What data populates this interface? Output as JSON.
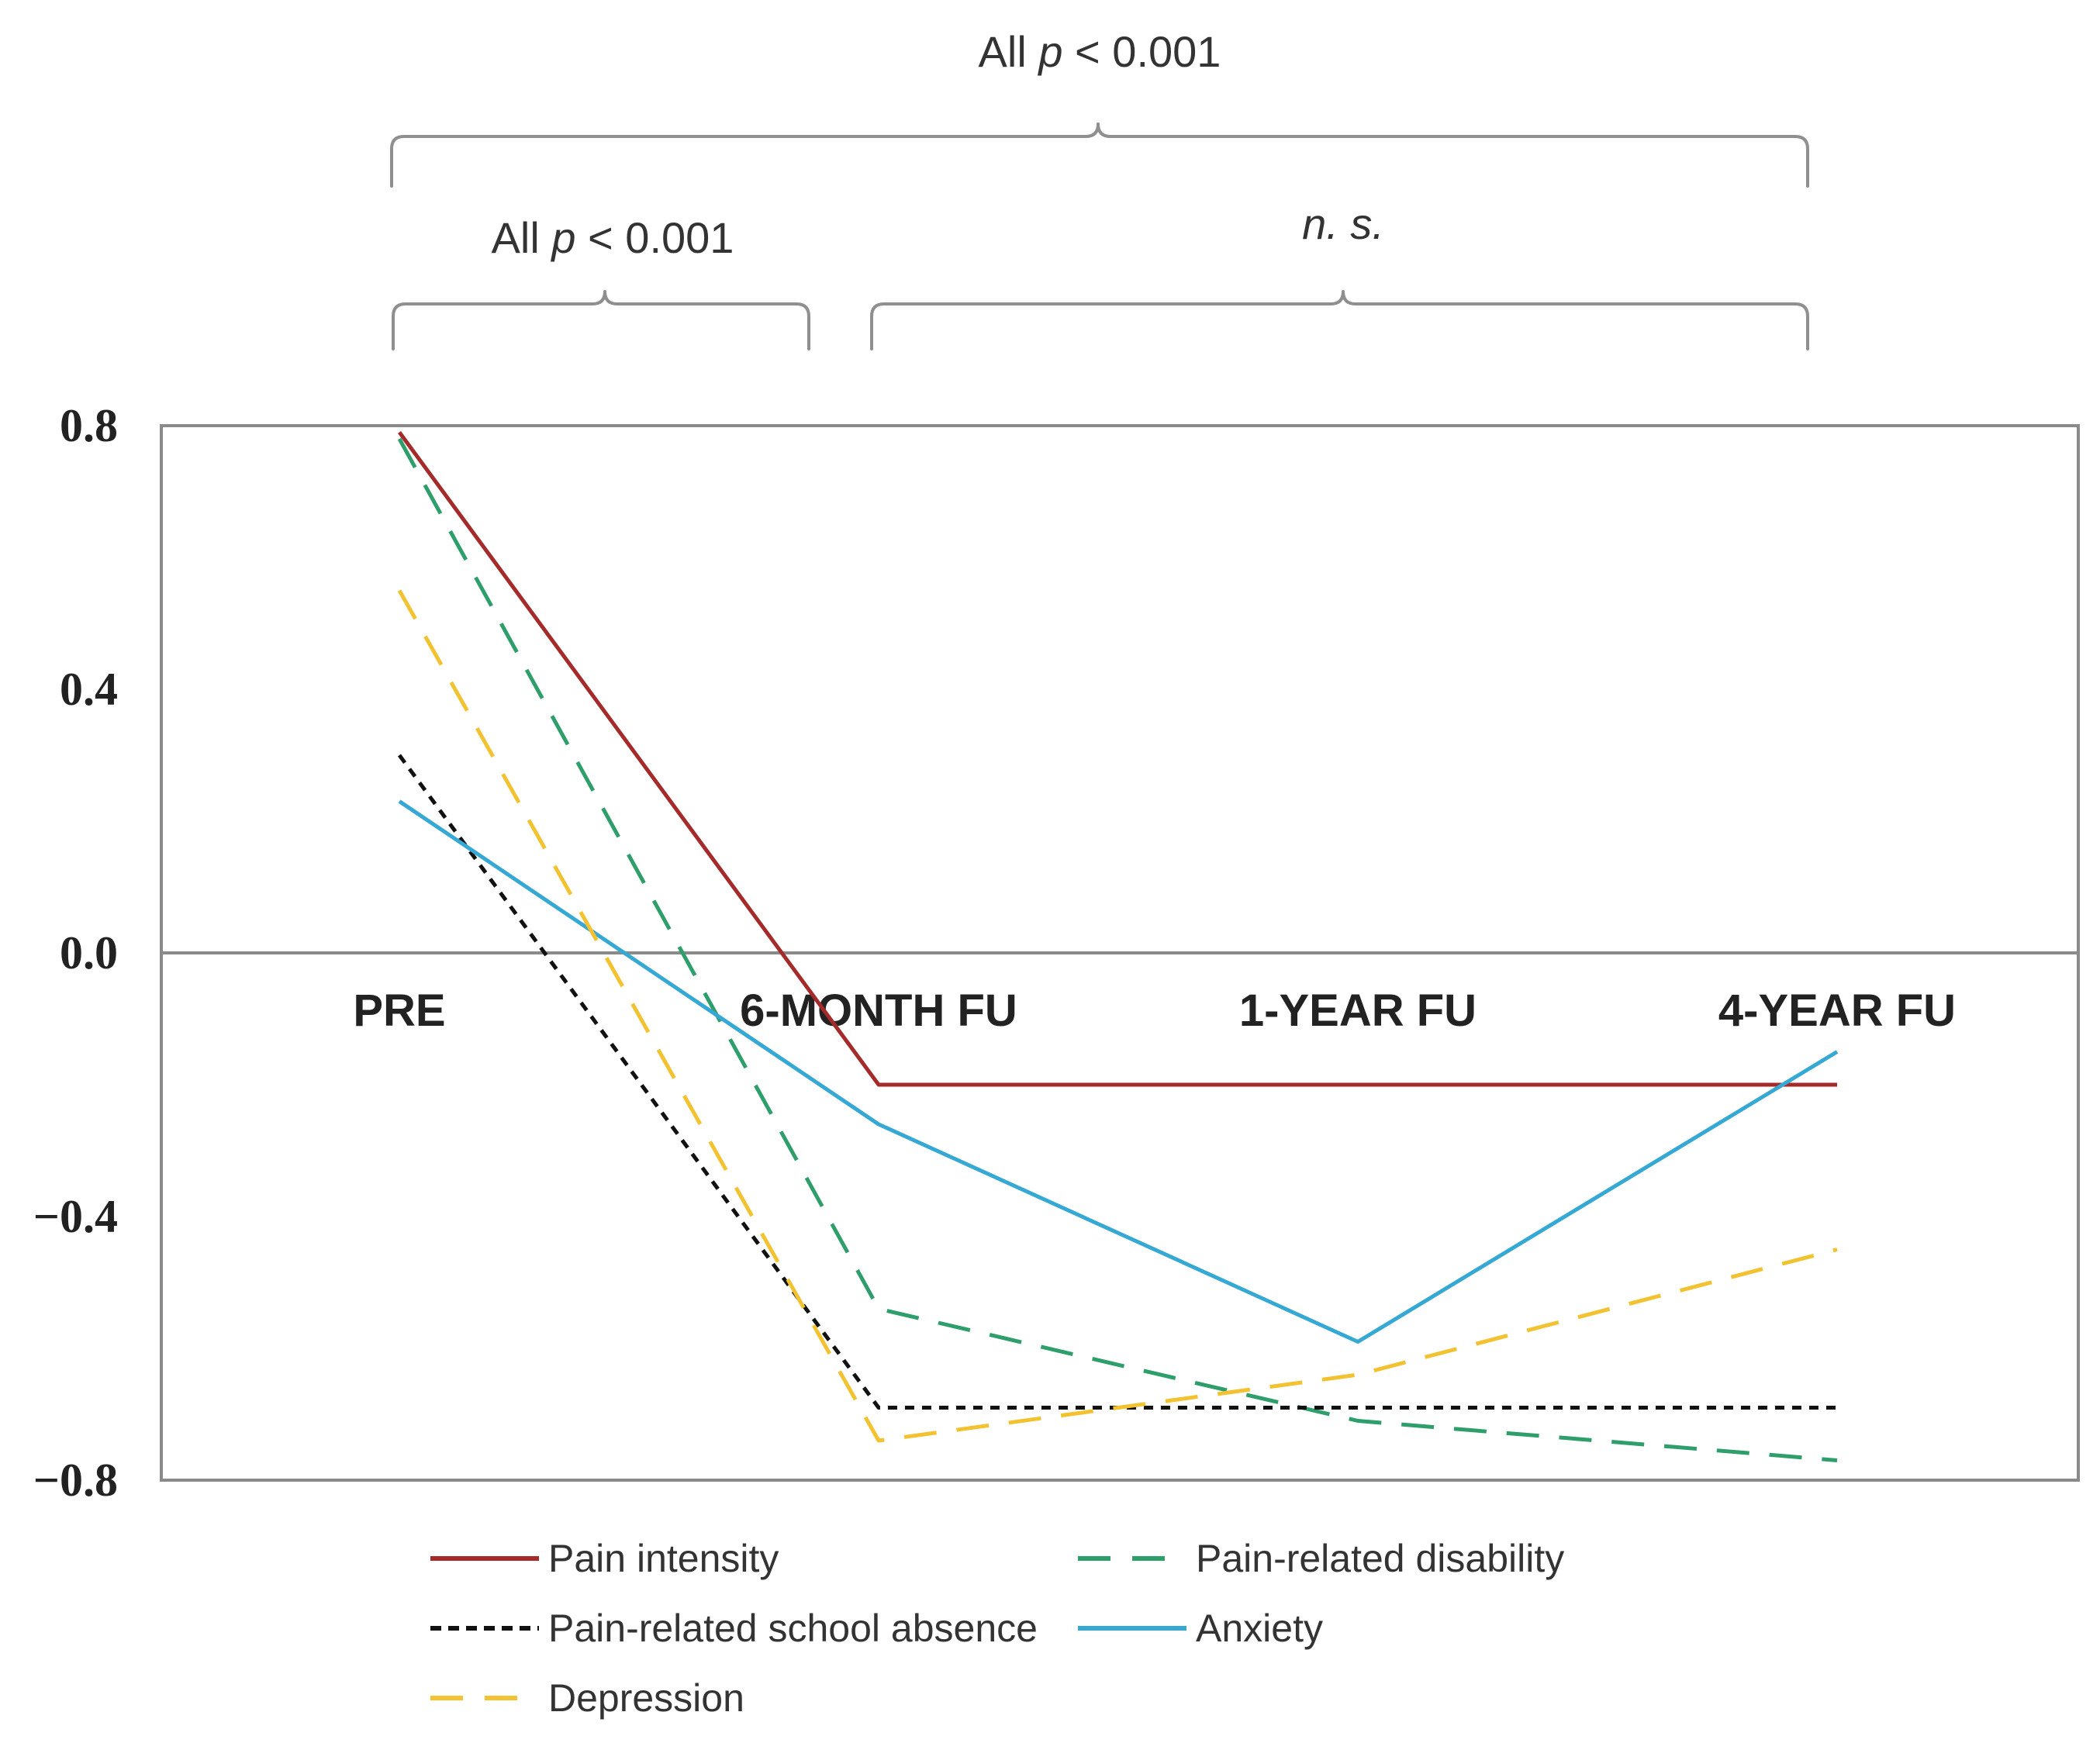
{
  "chart_data": {
    "type": "line",
    "categories": [
      "PRE",
      "6-MONTH FU",
      "1-YEAR FU",
      "4-YEAR FU"
    ],
    "ylim": [
      -0.8,
      0.8
    ],
    "yticks": [
      {
        "value": 0.8,
        "label": "0.8"
      },
      {
        "value": 0.4,
        "label": "0.4"
      },
      {
        "value": 0.0,
        "label": "0.0"
      },
      {
        "value": -0.4,
        "label": "−0.4"
      },
      {
        "value": -0.8,
        "label": "−0.8"
      }
    ],
    "grid": false,
    "legend_position": "bottom",
    "series": [
      {
        "name": "Pain intensity",
        "color": "#a52a2a",
        "dash": "solid",
        "values": [
          0.79,
          -0.2,
          null,
          -0.2
        ]
      },
      {
        "name": "Pain-related disability",
        "color": "#2e9e6b",
        "dash": "dashed",
        "values": [
          0.78,
          -0.54,
          -0.71,
          -0.77
        ]
      },
      {
        "name": "Pain-related school absence",
        "color": "#111111",
        "dash": "dotted",
        "values": [
          0.3,
          -0.69,
          -0.69,
          -0.69
        ]
      },
      {
        "name": "Anxiety",
        "color": "#35a8d4",
        "dash": "solid",
        "values": [
          0.23,
          -0.26,
          -0.59,
          -0.15
        ]
      },
      {
        "name": "Depression",
        "color": "#f2c230",
        "dash": "dashed",
        "values": [
          0.55,
          -0.74,
          -0.64,
          -0.45
        ]
      }
    ],
    "annotations": {
      "top": {
        "prefix": "All ",
        "italic": "p",
        "suffix": " < 0.001",
        "from": "PRE",
        "to": "4-YEAR FU"
      },
      "left": {
        "prefix": "All ",
        "italic": "p",
        "suffix": " < 0.001",
        "from": "PRE",
        "to": "6-MONTH FU"
      },
      "right": {
        "prefix": "",
        "italic": "n. s.",
        "suffix": "",
        "from": "6-MONTH FU",
        "to": "4-YEAR FU"
      }
    }
  }
}
